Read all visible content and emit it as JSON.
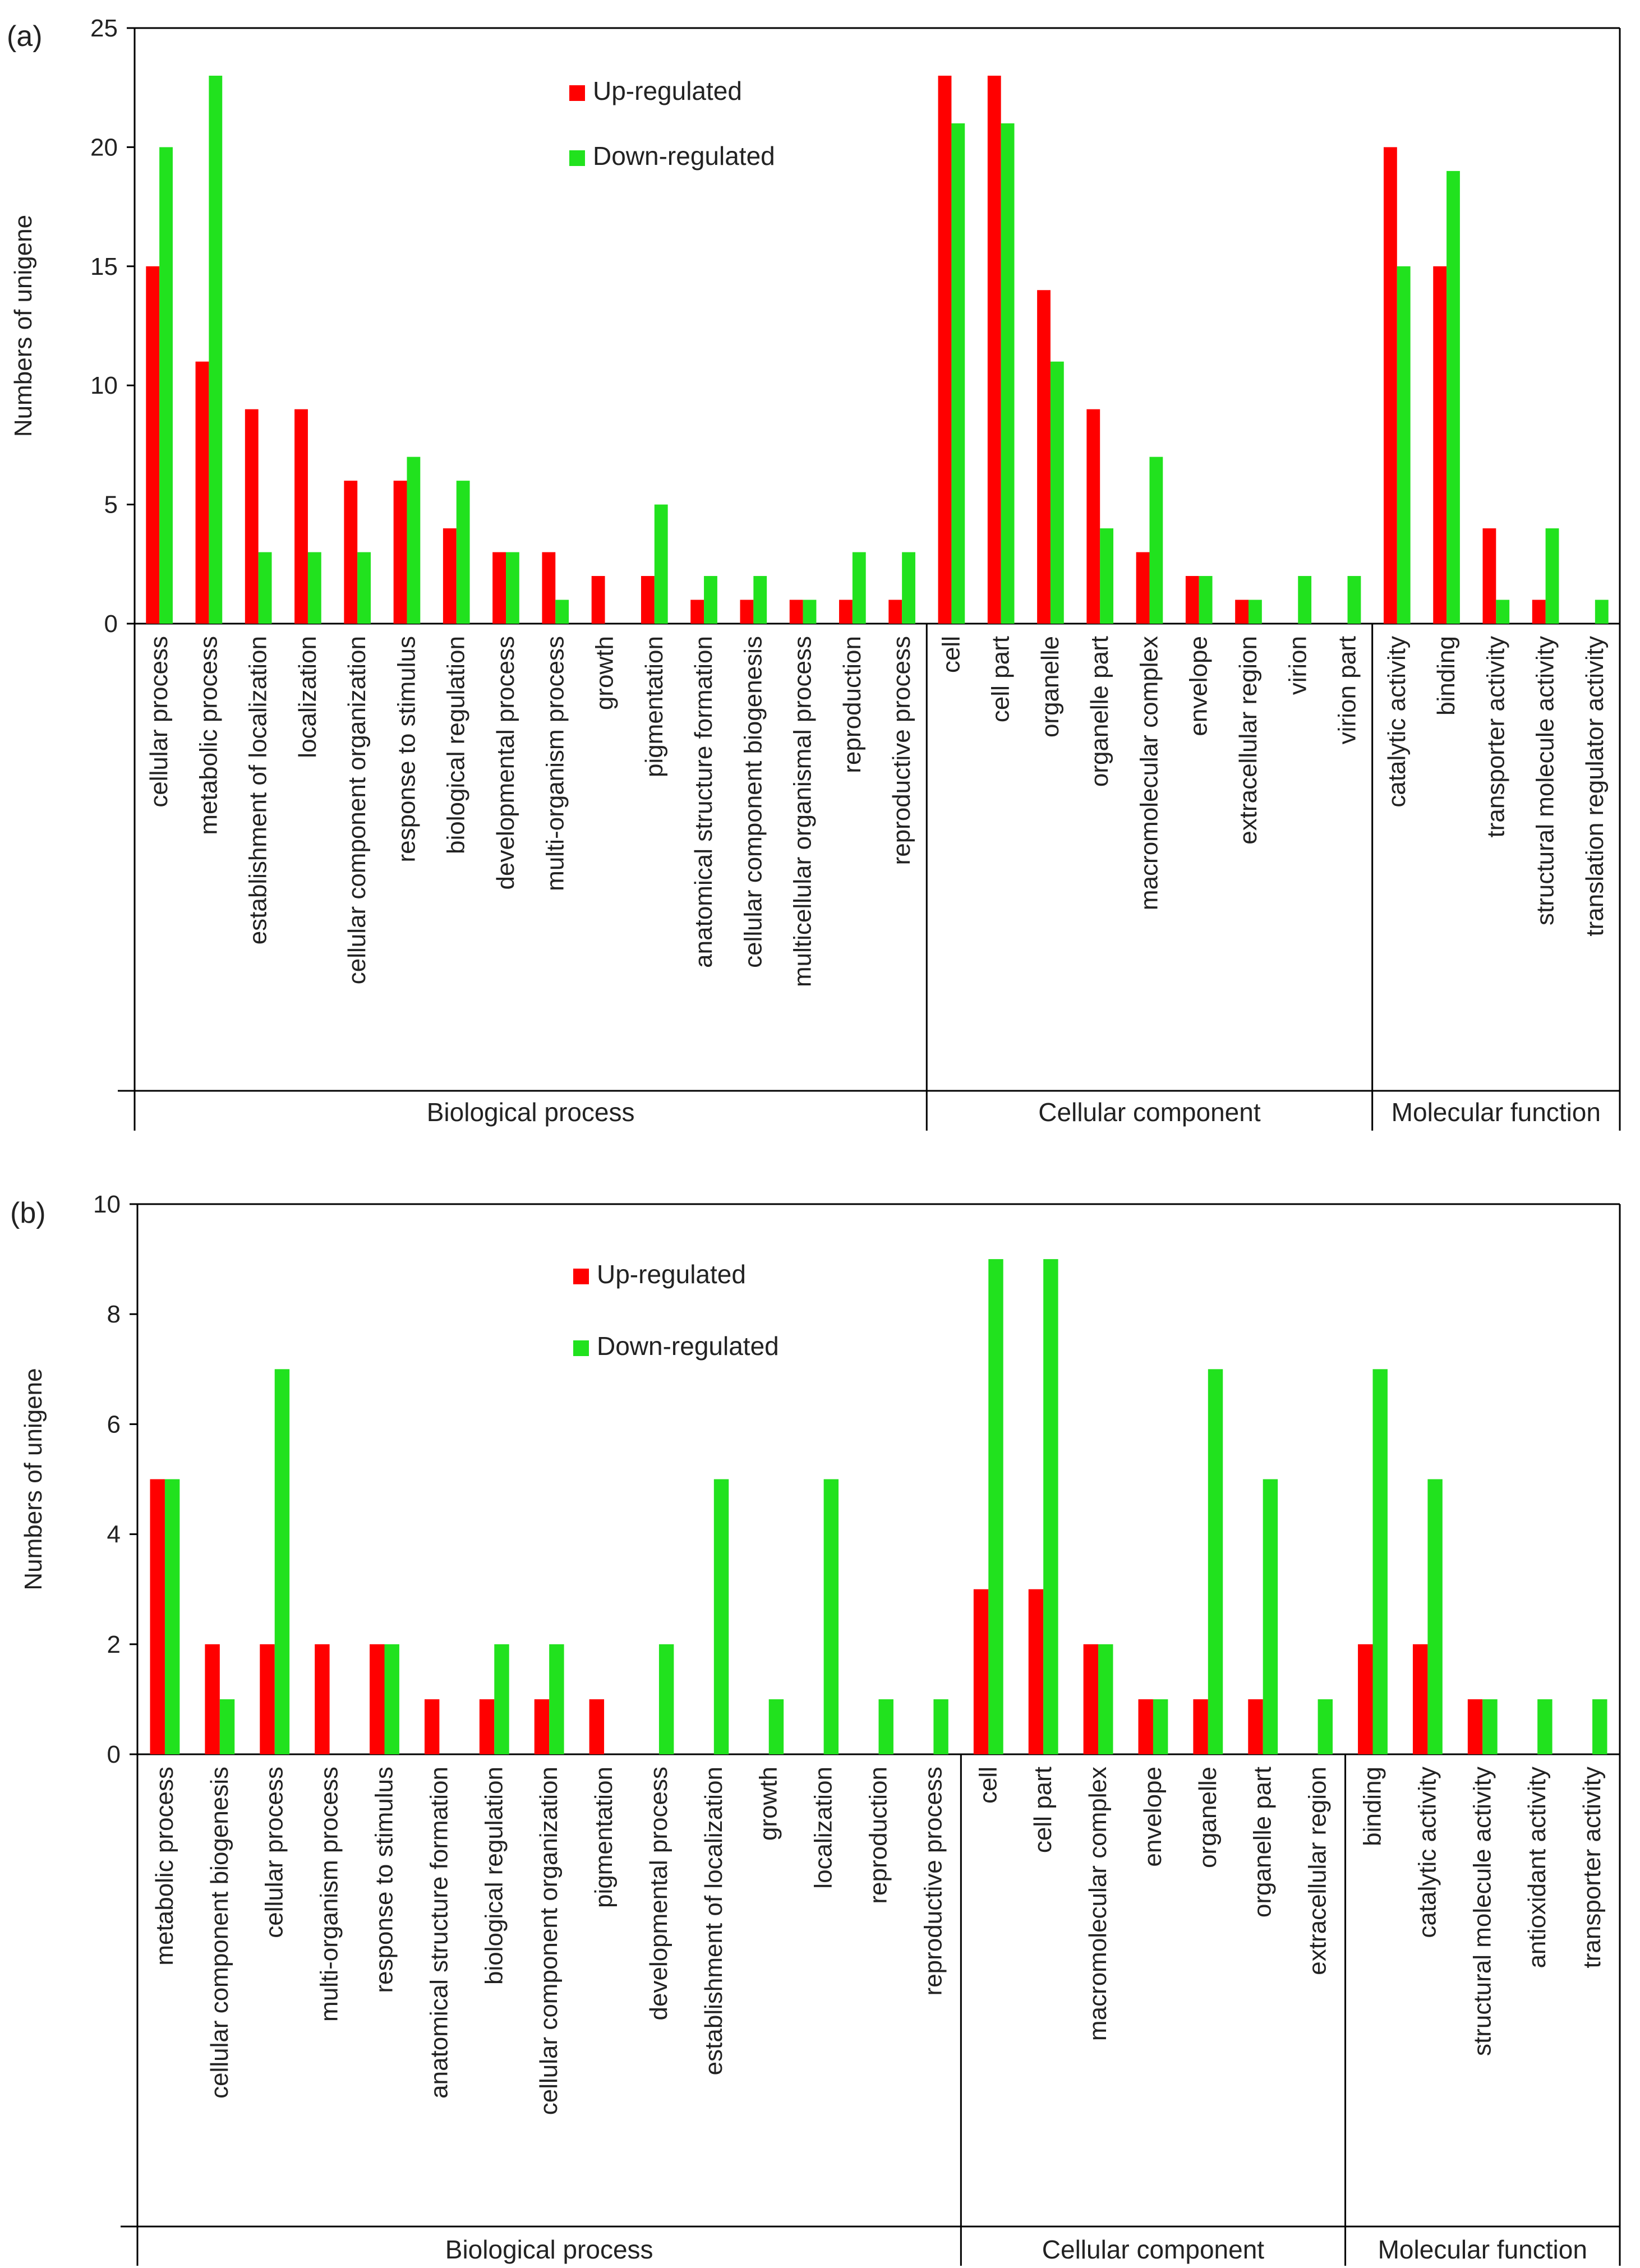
{
  "colors": {
    "up": "#ff0000",
    "down": "#21e21e",
    "axis": "#000000"
  },
  "chart_data": [
    {
      "panel_label": "(a)",
      "type": "bar",
      "ylabel": "Numbers of unigene",
      "ylim": [
        0,
        25
      ],
      "yticks": [
        0,
        5,
        10,
        15,
        20,
        25
      ],
      "legend_placement": "top-center",
      "categories": [
        "cellular process",
        "metabolic process",
        "establishment of localization",
        "localization",
        "cellular component organization",
        "response to stimulus",
        "biological regulation",
        "developmental process",
        "multi-organism process",
        "growth",
        "pigmentation",
        "anatomical structure formation",
        "cellular component biogenesis",
        "multicellular organismal process",
        "reproduction",
        "reproductive process",
        "cell",
        "cell part",
        "organelle",
        "organelle part",
        "macromolecular complex",
        "envelope",
        "extracellular region",
        "virion",
        "virion part",
        "catalytic activity",
        "binding",
        "transporter activity",
        "structural molecule activity",
        "translation regulator activity"
      ],
      "groups": [
        {
          "name": "Biological process",
          "count": 16
        },
        {
          "name": "Cellular component",
          "count": 9
        },
        {
          "name": "Molecular function",
          "count": 5
        }
      ],
      "series": [
        {
          "name": "Up-regulated",
          "values": [
            15,
            11,
            9,
            9,
            6,
            6,
            4,
            3,
            3,
            2,
            2,
            1,
            1,
            1,
            1,
            1,
            23,
            23,
            14,
            9,
            3,
            2,
            1,
            0,
            0,
            20,
            15,
            4,
            1,
            0
          ]
        },
        {
          "name": "Down-regulated",
          "values": [
            20,
            23,
            3,
            3,
            3,
            7,
            6,
            3,
            1,
            0,
            5,
            2,
            2,
            1,
            3,
            3,
            21,
            21,
            11,
            4,
            7,
            2,
            1,
            2,
            2,
            15,
            19,
            1,
            4,
            1
          ]
        }
      ]
    },
    {
      "panel_label": "(b)",
      "type": "bar",
      "ylabel": "Numbers of unigene",
      "ylim": [
        0,
        10
      ],
      "yticks": [
        0,
        2,
        4,
        6,
        8,
        10
      ],
      "legend_placement": "top-center",
      "categories": [
        "metabolic process",
        "cellular component biogenesis",
        "cellular process",
        "multi-organism process",
        "response to stimulus",
        "anatomical structure formation",
        "biological regulation",
        "cellular component organization",
        "pigmentation",
        "developmental process",
        "establishment of localization",
        "growth",
        "localization",
        "reproduction",
        "reproductive process",
        "cell",
        "cell part",
        "macromolecular complex",
        "envelope",
        "organelle",
        "organelle part",
        "extracellular region",
        "binding",
        "catalytic activity",
        "structural molecule activity",
        "antioxidant activity",
        "transporter activity"
      ],
      "groups": [
        {
          "name": "Biological process",
          "count": 15
        },
        {
          "name": "Cellular component",
          "count": 7
        },
        {
          "name": "Molecular function",
          "count": 5
        }
      ],
      "series": [
        {
          "name": "Up-regulated",
          "values": [
            5,
            2,
            2,
            2,
            2,
            1,
            1,
            1,
            1,
            0,
            0,
            0,
            0,
            0,
            0,
            3,
            3,
            2,
            1,
            1,
            1,
            0,
            2,
            2,
            1,
            0,
            0
          ]
        },
        {
          "name": "Down-regulated",
          "values": [
            5,
            1,
            7,
            0,
            2,
            0,
            2,
            2,
            0,
            2,
            5,
            1,
            5,
            1,
            1,
            9,
            9,
            2,
            1,
            7,
            5,
            1,
            7,
            5,
            1,
            1,
            1
          ]
        }
      ]
    }
  ]
}
